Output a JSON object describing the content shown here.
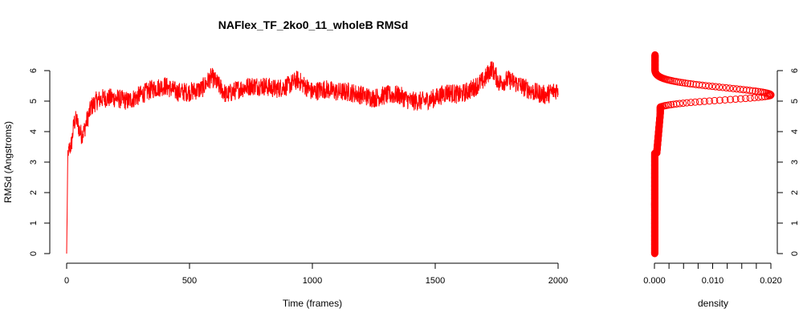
{
  "chart_data": [
    {
      "type": "line",
      "title": "NAFlex_TF_2ko0_11_wholeB RMSd",
      "xlabel": "Time (frames)",
      "ylabel": "RMSd (Angstroms)",
      "xlim": [
        0,
        2000
      ],
      "ylim": [
        0,
        6.3
      ],
      "x_ticks": [
        "0",
        "500",
        "1000",
        "1500",
        "2000"
      ],
      "y_ticks": [
        "0",
        "1",
        "2",
        "3",
        "4",
        "5",
        "6"
      ],
      "color": "#ff0000",
      "grid": false,
      "series": [
        {
          "x": [
            0,
            5,
            10,
            20,
            30,
            40,
            50,
            60,
            70,
            80,
            100,
            120,
            150,
            200,
            250,
            300,
            350,
            400,
            450,
            500,
            550,
            590,
            650,
            700,
            750,
            800,
            850,
            900,
            940,
            1000,
            1050,
            1100,
            1150,
            1200,
            1250,
            1300,
            1350,
            1400,
            1450,
            1500,
            1550,
            1600,
            1650,
            1700,
            1730,
            1760,
            1800,
            1850,
            1900,
            1950,
            2000
          ],
          "values": [
            0.0,
            3.3,
            3.4,
            3.6,
            4.3,
            4.4,
            4.1,
            3.9,
            4.0,
            4.3,
            4.8,
            5.0,
            5.1,
            5.1,
            5.0,
            5.2,
            5.4,
            5.5,
            5.3,
            5.3,
            5.4,
            5.8,
            5.2,
            5.4,
            5.5,
            5.5,
            5.4,
            5.5,
            5.7,
            5.3,
            5.4,
            5.3,
            5.3,
            5.2,
            5.1,
            5.2,
            5.2,
            5.0,
            5.0,
            5.1,
            5.3,
            5.2,
            5.4,
            5.7,
            6.1,
            5.6,
            5.7,
            5.5,
            5.3,
            5.2,
            5.4
          ]
        }
      ]
    },
    {
      "type": "scatter",
      "xlabel": "density",
      "xlim": [
        0,
        0.02
      ],
      "ylim": [
        0,
        6.3
      ],
      "x_ticks": [
        "0.000",
        "0.010",
        "0.020"
      ],
      "y_ticks": [
        "0",
        "1",
        "2",
        "3",
        "4",
        "5",
        "6"
      ],
      "color": "#ff0000",
      "marker": "open-circle",
      "density_peak": {
        "y": 5.2,
        "density": 0.02
      }
    }
  ]
}
